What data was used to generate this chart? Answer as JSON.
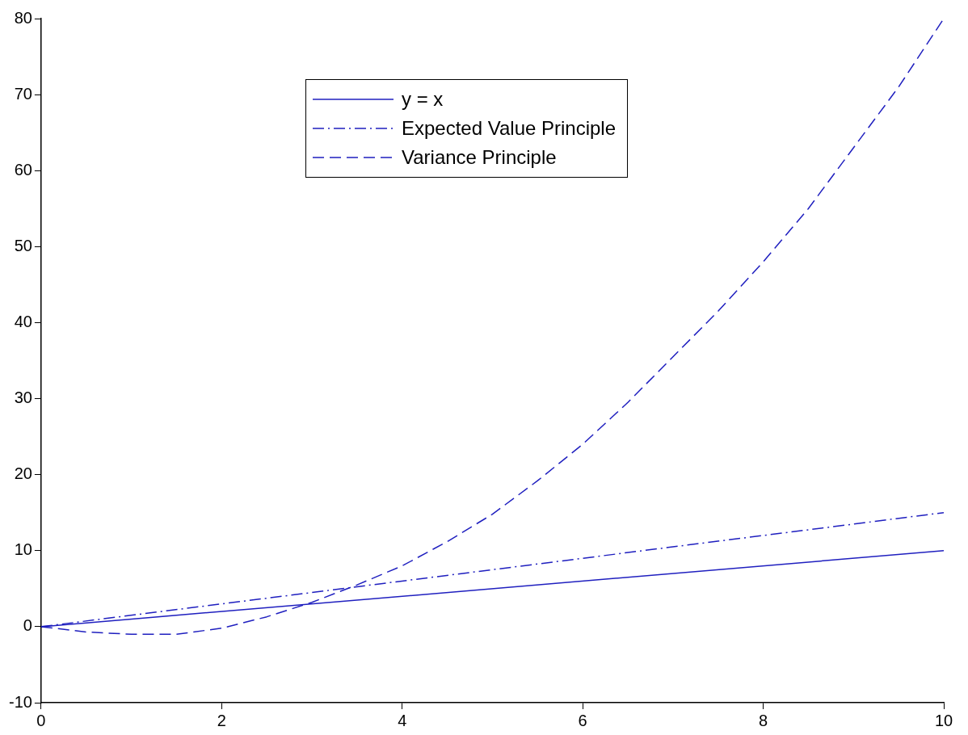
{
  "chart_data": {
    "type": "line",
    "xlim": [
      0,
      10
    ],
    "ylim": [
      -10,
      80
    ],
    "xticks": [
      0,
      2,
      4,
      6,
      8,
      10
    ],
    "yticks": [
      -10,
      0,
      10,
      20,
      30,
      40,
      50,
      60,
      70,
      80
    ],
    "grid": false,
    "legend": "top",
    "marker": "none",
    "series": [
      {
        "name": "y = x",
        "color": "#1f1fbf",
        "line_style": "solid",
        "x": [
          0,
          10
        ],
        "values": [
          0,
          10
        ]
      },
      {
        "name": "Expected Value Principle",
        "color": "#1f1fbf",
        "line_style": "dashdot",
        "x": [
          0,
          10
        ],
        "values": [
          0,
          15
        ]
      },
      {
        "name": "Variance Principle",
        "color": "#1f1fbf",
        "line_style": "dashed",
        "x": [
          0,
          0.5,
          1,
          1.5,
          2,
          2.5,
          3,
          3.5,
          4,
          4.5,
          5,
          5.5,
          6,
          6.5,
          7,
          7.5,
          8,
          8.5,
          9,
          9.5,
          10
        ],
        "values": [
          0,
          -0.7,
          -1,
          -1,
          -0.2,
          1.3,
          3.2,
          5.5,
          8,
          11.2,
          14.8,
          19.2,
          24,
          29.5,
          35.5,
          41.5,
          48,
          55,
          63,
          71,
          80
        ]
      }
    ]
  }
}
